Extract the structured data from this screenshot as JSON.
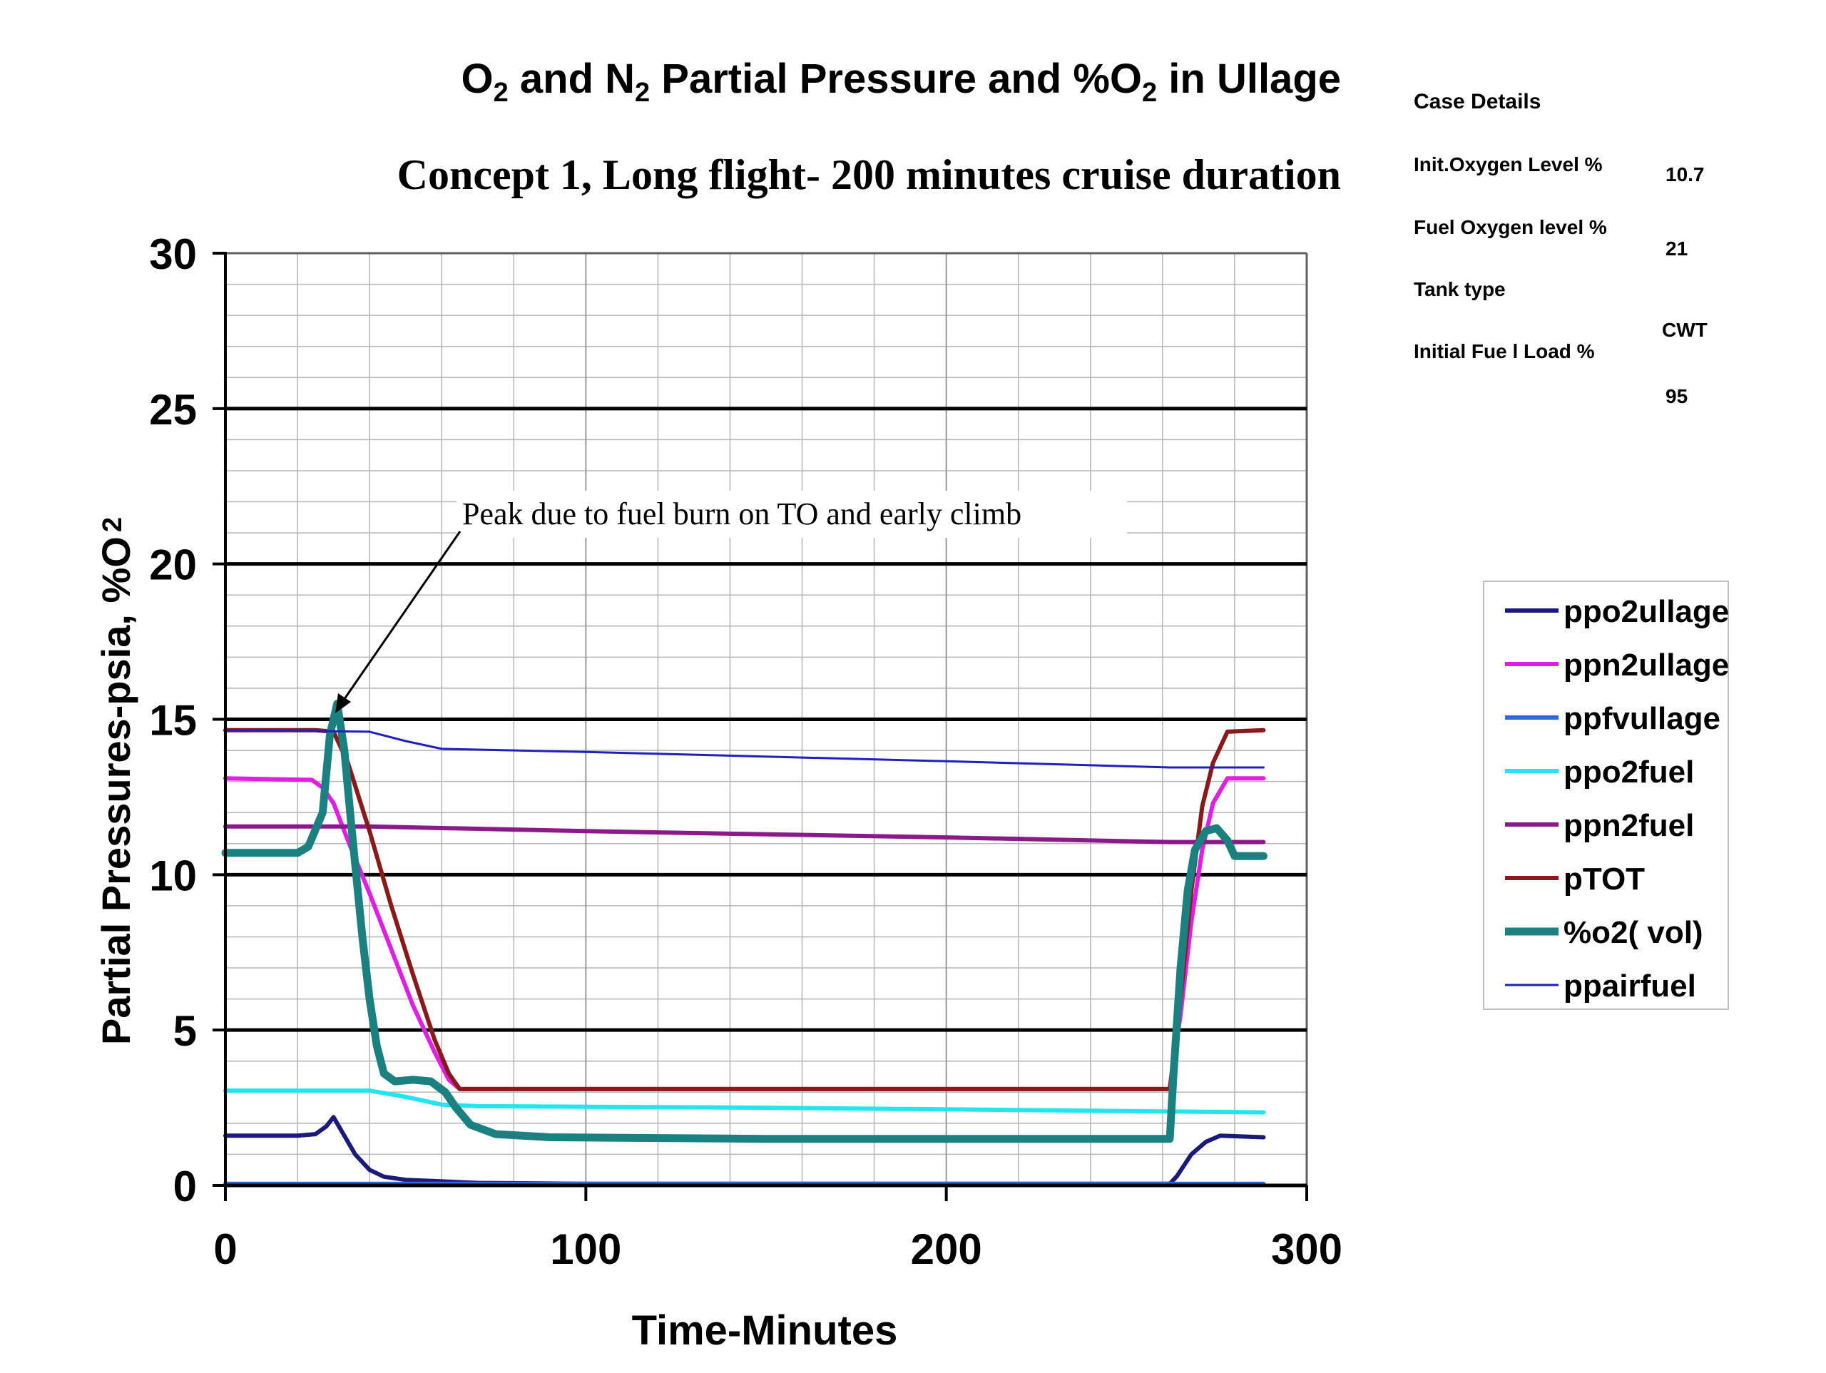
{
  "chart_data": {
    "type": "line",
    "title": {
      "p1": "O",
      "p2": "2",
      "p3": " and N",
      "p4": "2",
      "p5": " Partial Pressure and %O",
      "p6": "2",
      "p7": " in Ullage"
    },
    "subtitle": "Concept 1, Long flight- 200 minutes cruise duration",
    "xlabel": "Time-Minutes",
    "ylabel": {
      "main": "Partial Pressures-psia, %O",
      "sub": "2"
    },
    "xlim": [
      0,
      300
    ],
    "ylim": [
      0,
      30
    ],
    "x_ticks": [
      "0",
      "100",
      "200",
      "300"
    ],
    "y_ticks": [
      "0",
      "5",
      "10",
      "15",
      "20",
      "25",
      "30"
    ],
    "grid": true,
    "legend_position": "right",
    "annotation": "Peak due to fuel burn on TO and early climb",
    "series": [
      {
        "name": "ppo2ullage",
        "color": "#1a1a7a",
        "points": [
          [
            0,
            1.6
          ],
          [
            20,
            1.6
          ],
          [
            25,
            1.65
          ],
          [
            28,
            1.9
          ],
          [
            30,
            2.2
          ],
          [
            32,
            1.8
          ],
          [
            36,
            1.0
          ],
          [
            40,
            0.5
          ],
          [
            44,
            0.28
          ],
          [
            50,
            0.18
          ],
          [
            70,
            0.08
          ],
          [
            100,
            0.05
          ],
          [
            200,
            0.05
          ],
          [
            262,
            0.05
          ],
          [
            264,
            0.3
          ],
          [
            268,
            1.0
          ],
          [
            272,
            1.4
          ],
          [
            276,
            1.6
          ],
          [
            288,
            1.55
          ]
        ]
      },
      {
        "name": "ppn2ullage",
        "color": "#e020e0",
        "points": [
          [
            0,
            13.1
          ],
          [
            24,
            13.05
          ],
          [
            27,
            12.8
          ],
          [
            30,
            12.3
          ],
          [
            34,
            11.1
          ],
          [
            40,
            9.4
          ],
          [
            46,
            7.6
          ],
          [
            52,
            5.8
          ],
          [
            58,
            4.3
          ],
          [
            62,
            3.4
          ],
          [
            65,
            3.1
          ],
          [
            100,
            3.1
          ],
          [
            200,
            3.1
          ],
          [
            262,
            3.1
          ],
          [
            265,
            5.5
          ],
          [
            268,
            8.5
          ],
          [
            271,
            10.8
          ],
          [
            274,
            12.3
          ],
          [
            278,
            13.1
          ],
          [
            288,
            13.1
          ]
        ]
      },
      {
        "name": "ppfvullage",
        "color": "#3366dd",
        "points": [
          [
            0,
            0.05
          ],
          [
            288,
            0.05
          ]
        ]
      },
      {
        "name": "ppo2fuel",
        "color": "#22e5ee",
        "points": [
          [
            0,
            3.05
          ],
          [
            40,
            3.05
          ],
          [
            50,
            2.85
          ],
          [
            60,
            2.6
          ],
          [
            70,
            2.55
          ],
          [
            150,
            2.5
          ],
          [
            200,
            2.45
          ],
          [
            288,
            2.35
          ]
        ]
      },
      {
        "name": "ppn2fuel",
        "color": "#8a1a8a",
        "points": [
          [
            0,
            11.55
          ],
          [
            40,
            11.55
          ],
          [
            100,
            11.4
          ],
          [
            200,
            11.2
          ],
          [
            262,
            11.05
          ],
          [
            288,
            11.05
          ]
        ]
      },
      {
        "name": "pTOT",
        "color": "#8a1a1a",
        "points": [
          [
            0,
            14.65
          ],
          [
            25,
            14.65
          ],
          [
            30,
            14.6
          ],
          [
            34,
            13.6
          ],
          [
            40,
            11.4
          ],
          [
            46,
            9.0
          ],
          [
            52,
            6.8
          ],
          [
            58,
            4.7
          ],
          [
            62,
            3.6
          ],
          [
            65,
            3.1
          ],
          [
            100,
            3.1
          ],
          [
            200,
            3.1
          ],
          [
            262,
            3.1
          ],
          [
            265,
            6.0
          ],
          [
            268,
            9.5
          ],
          [
            271,
            12.2
          ],
          [
            274,
            13.6
          ],
          [
            278,
            14.6
          ],
          [
            288,
            14.65
          ]
        ]
      },
      {
        "name": "%o2( vol)",
        "color": "#1a8080",
        "points": [
          [
            0,
            10.7
          ],
          [
            20,
            10.7
          ],
          [
            23,
            10.9
          ],
          [
            27,
            12.0
          ],
          [
            29,
            14.5
          ],
          [
            31,
            15.5
          ],
          [
            33,
            14.0
          ],
          [
            35,
            11.5
          ],
          [
            38,
            8.0
          ],
          [
            40,
            6.0
          ],
          [
            42,
            4.5
          ],
          [
            44,
            3.6
          ],
          [
            47,
            3.35
          ],
          [
            52,
            3.4
          ],
          [
            57,
            3.35
          ],
          [
            61,
            3.0
          ],
          [
            64,
            2.5
          ],
          [
            68,
            1.95
          ],
          [
            75,
            1.65
          ],
          [
            90,
            1.55
          ],
          [
            150,
            1.5
          ],
          [
            200,
            1.5
          ],
          [
            262,
            1.5
          ],
          [
            263,
            3.5
          ],
          [
            265,
            7.0
          ],
          [
            267,
            9.5
          ],
          [
            269,
            10.8
          ],
          [
            272,
            11.4
          ],
          [
            275,
            11.5
          ],
          [
            278,
            11.1
          ],
          [
            280,
            10.6
          ],
          [
            288,
            10.6
          ]
        ]
      },
      {
        "name": "ppairfuel",
        "color": "#2020c0",
        "points": [
          [
            0,
            14.65
          ],
          [
            40,
            14.6
          ],
          [
            50,
            14.3
          ],
          [
            60,
            14.05
          ],
          [
            100,
            13.95
          ],
          [
            200,
            13.65
          ],
          [
            262,
            13.45
          ],
          [
            288,
            13.45
          ]
        ]
      }
    ]
  },
  "case_details": {
    "header": "Case Details",
    "rows": [
      {
        "label": "Init.Oxygen Level %",
        "value": "10.7"
      },
      {
        "label": "Fuel Oxygen level %",
        "value": "21"
      },
      {
        "label": "Tank type",
        "value": "CWT"
      },
      {
        "label": "Initial Fue l Load %",
        "value": "95"
      }
    ]
  }
}
